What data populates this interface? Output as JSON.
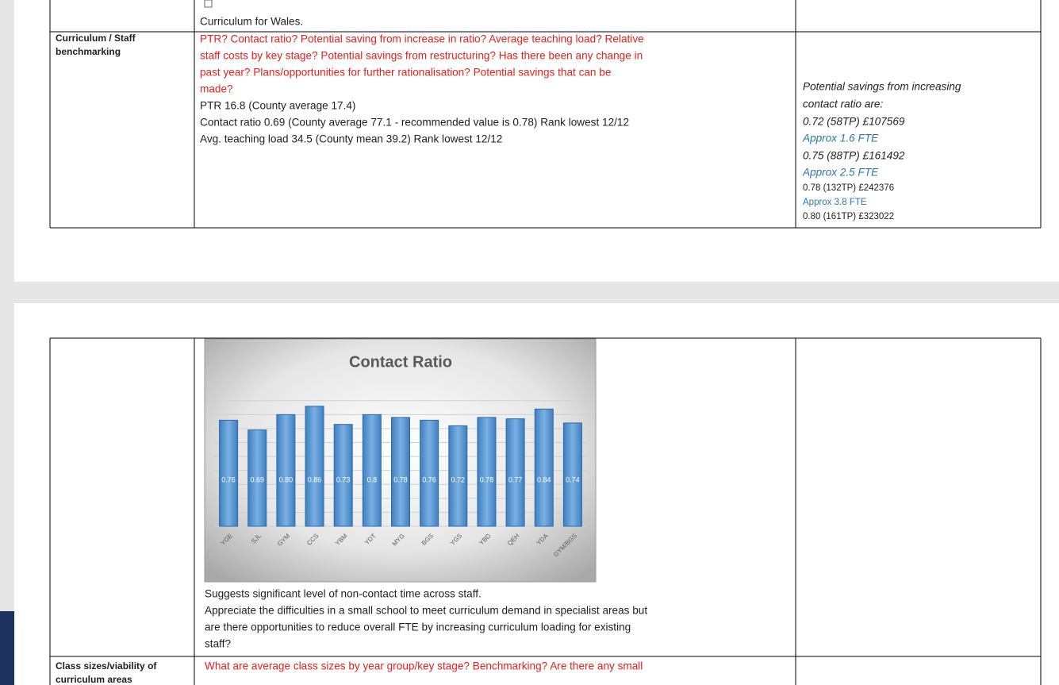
{
  "page1": {
    "row0": {
      "content": "Curriculum for Wales."
    },
    "row1": {
      "heading": [
        "Curriculum / Staff",
        "benchmarking"
      ],
      "questions": [
        "PTR? Contact ratio? Potential saving from increase in ratio? Average teaching load? Relative",
        "staff costs by key stage? Potential savings from restructuring? Has there been any change in",
        "past year? Plans/opportunities for further rationalisation? Potential savings that can be",
        "made?"
      ],
      "findings": [
        "PTR 16.8 (County average 17.4)",
        "Contact ratio 0.69 (County average 77.1 - recommended value is 0.78) Rank lowest 12/12",
        "Avg. teaching load 34.5 (County mean 39.2) Rank lowest 12/12"
      ],
      "notes": [
        {
          "text": "Potential savings from increasing",
          "color": "#1f1f1f",
          "italic": true
        },
        {
          "text": "contact ratio are:",
          "color": "#1f1f1f",
          "italic": true
        },
        {
          "text": "0.72 (58TP) £107569",
          "color": "#1f1f1f",
          "italic": true
        },
        {
          "text": "Approx 1.6 FTE",
          "color": "#2e74b5",
          "italic": true
        },
        {
          "text": "0.75 (88TP) £161492",
          "color": "#1f1f1f",
          "italic": true
        },
        {
          "text": "Approx 2.5 FTE",
          "color": "#2e74b5",
          "italic": true
        },
        {
          "text": "0.78 (132TP) £242376",
          "color": "#1f1f1f",
          "italic": false
        },
        {
          "text": "Approx 3.8 FTE",
          "color": "#2e74b5",
          "italic": false
        },
        {
          "text": "0.80 (161TP) £323022",
          "color": "#1f1f1f",
          "italic": false
        }
      ]
    }
  },
  "page2": {
    "row0": {
      "chart_data": {
        "type": "bar",
        "title": "Contact Ratio",
        "categories": [
          "YGE",
          "SJL",
          "GYM",
          "CCS",
          "YBM",
          "YDT",
          "MYG",
          "BGS",
          "YGS",
          "YBD",
          "QEH",
          "YDA",
          "GYM/BGS"
        ],
        "values": [
          0.76,
          0.69,
          0.8,
          0.86,
          0.73,
          0.8,
          0.78,
          0.76,
          0.72,
          0.78,
          0.77,
          0.84,
          0.74
        ],
        "value_labels": [
          "0.76",
          "0.69",
          "0.80",
          "0.86",
          "0.73",
          "0.8",
          "0.78",
          "0.76",
          "0.72",
          "0.78",
          "0.77",
          "0.84",
          "0.74"
        ],
        "color": "#5b9bd5",
        "ylim": [
          0,
          0.95
        ],
        "yticks": [
          0,
          0.1,
          0.2,
          0.3,
          0.4,
          0.5,
          0.6,
          0.7,
          0.8,
          0.9
        ],
        "grid": true
      },
      "findings": [
        "Suggests significant level of non-contact time across staff.",
        "Appreciate the difficulties in a small school to meet curriculum demand in specialist areas but",
        "are there opportunities to reduce overall FTE by increasing curriculum loading for existing",
        "staff?"
      ]
    },
    "row1": {
      "heading": [
        "Class sizes/viability of",
        "curriculum areas"
      ],
      "questions": [
        "What are average class sizes by year group/key stage? Benchmarking? Are there any small"
      ]
    }
  }
}
